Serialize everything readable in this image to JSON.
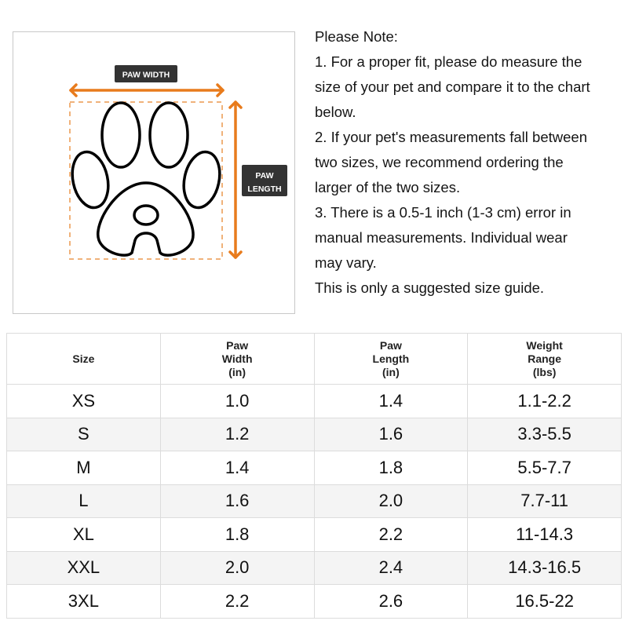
{
  "diagram": {
    "width_label": "PAW WIDTH",
    "length_label_line1": "PAW",
    "length_label_line2": "LENGTH",
    "accent_color": "#e87b1c",
    "label_bg_color": "#333333"
  },
  "notes": {
    "lines": [
      "Please Note:",
      "1. For a proper fit, please do measure the",
      "size of your pet and compare it to the chart",
      "below.",
      "2. If your pet's measurements fall between",
      "two sizes, we recommend ordering the",
      "larger of the two sizes.",
      "3. There is a 0.5-1 inch (1-3 cm) error in",
      "manual measurements. Individual wear",
      "may vary.",
      "This is only a suggested size guide."
    ]
  },
  "table": {
    "headers": [
      [
        "Size"
      ],
      [
        "Paw",
        "Width",
        "(in)"
      ],
      [
        "Paw",
        "Length",
        "(in)"
      ],
      [
        "Weight",
        "Range",
        "(lbs)"
      ]
    ],
    "rows": [
      [
        "XS",
        "1.0",
        "1.4",
        "1.1-2.2"
      ],
      [
        "S",
        "1.2",
        "1.6",
        "3.3-5.5"
      ],
      [
        "M",
        "1.4",
        "1.8",
        "5.5-7.7"
      ],
      [
        "L",
        "1.6",
        "2.0",
        "7.7-11"
      ],
      [
        "XL",
        "1.8",
        "2.2",
        "11-14.3"
      ],
      [
        "XXL",
        "2.0",
        "2.4",
        "14.3-16.5"
      ],
      [
        "3XL",
        "2.2",
        "2.6",
        "16.5-22"
      ]
    ]
  }
}
